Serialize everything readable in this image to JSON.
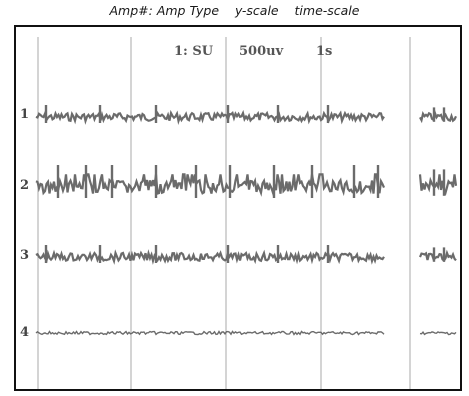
{
  "caption": {
    "amp": "Amp#: Amp Type",
    "yscale": "y-scale",
    "timescale": "time-scale"
  },
  "header": {
    "amp": "1: SU",
    "yscale": "500uv",
    "timescale": "1s"
  },
  "channels": [
    {
      "label": "1"
    },
    {
      "label": "2"
    },
    {
      "label": "3"
    },
    {
      "label": "4"
    }
  ],
  "colors": {
    "trace": "#6b6b6b",
    "grid": "#b8b8b8",
    "frame": "#111111"
  }
}
